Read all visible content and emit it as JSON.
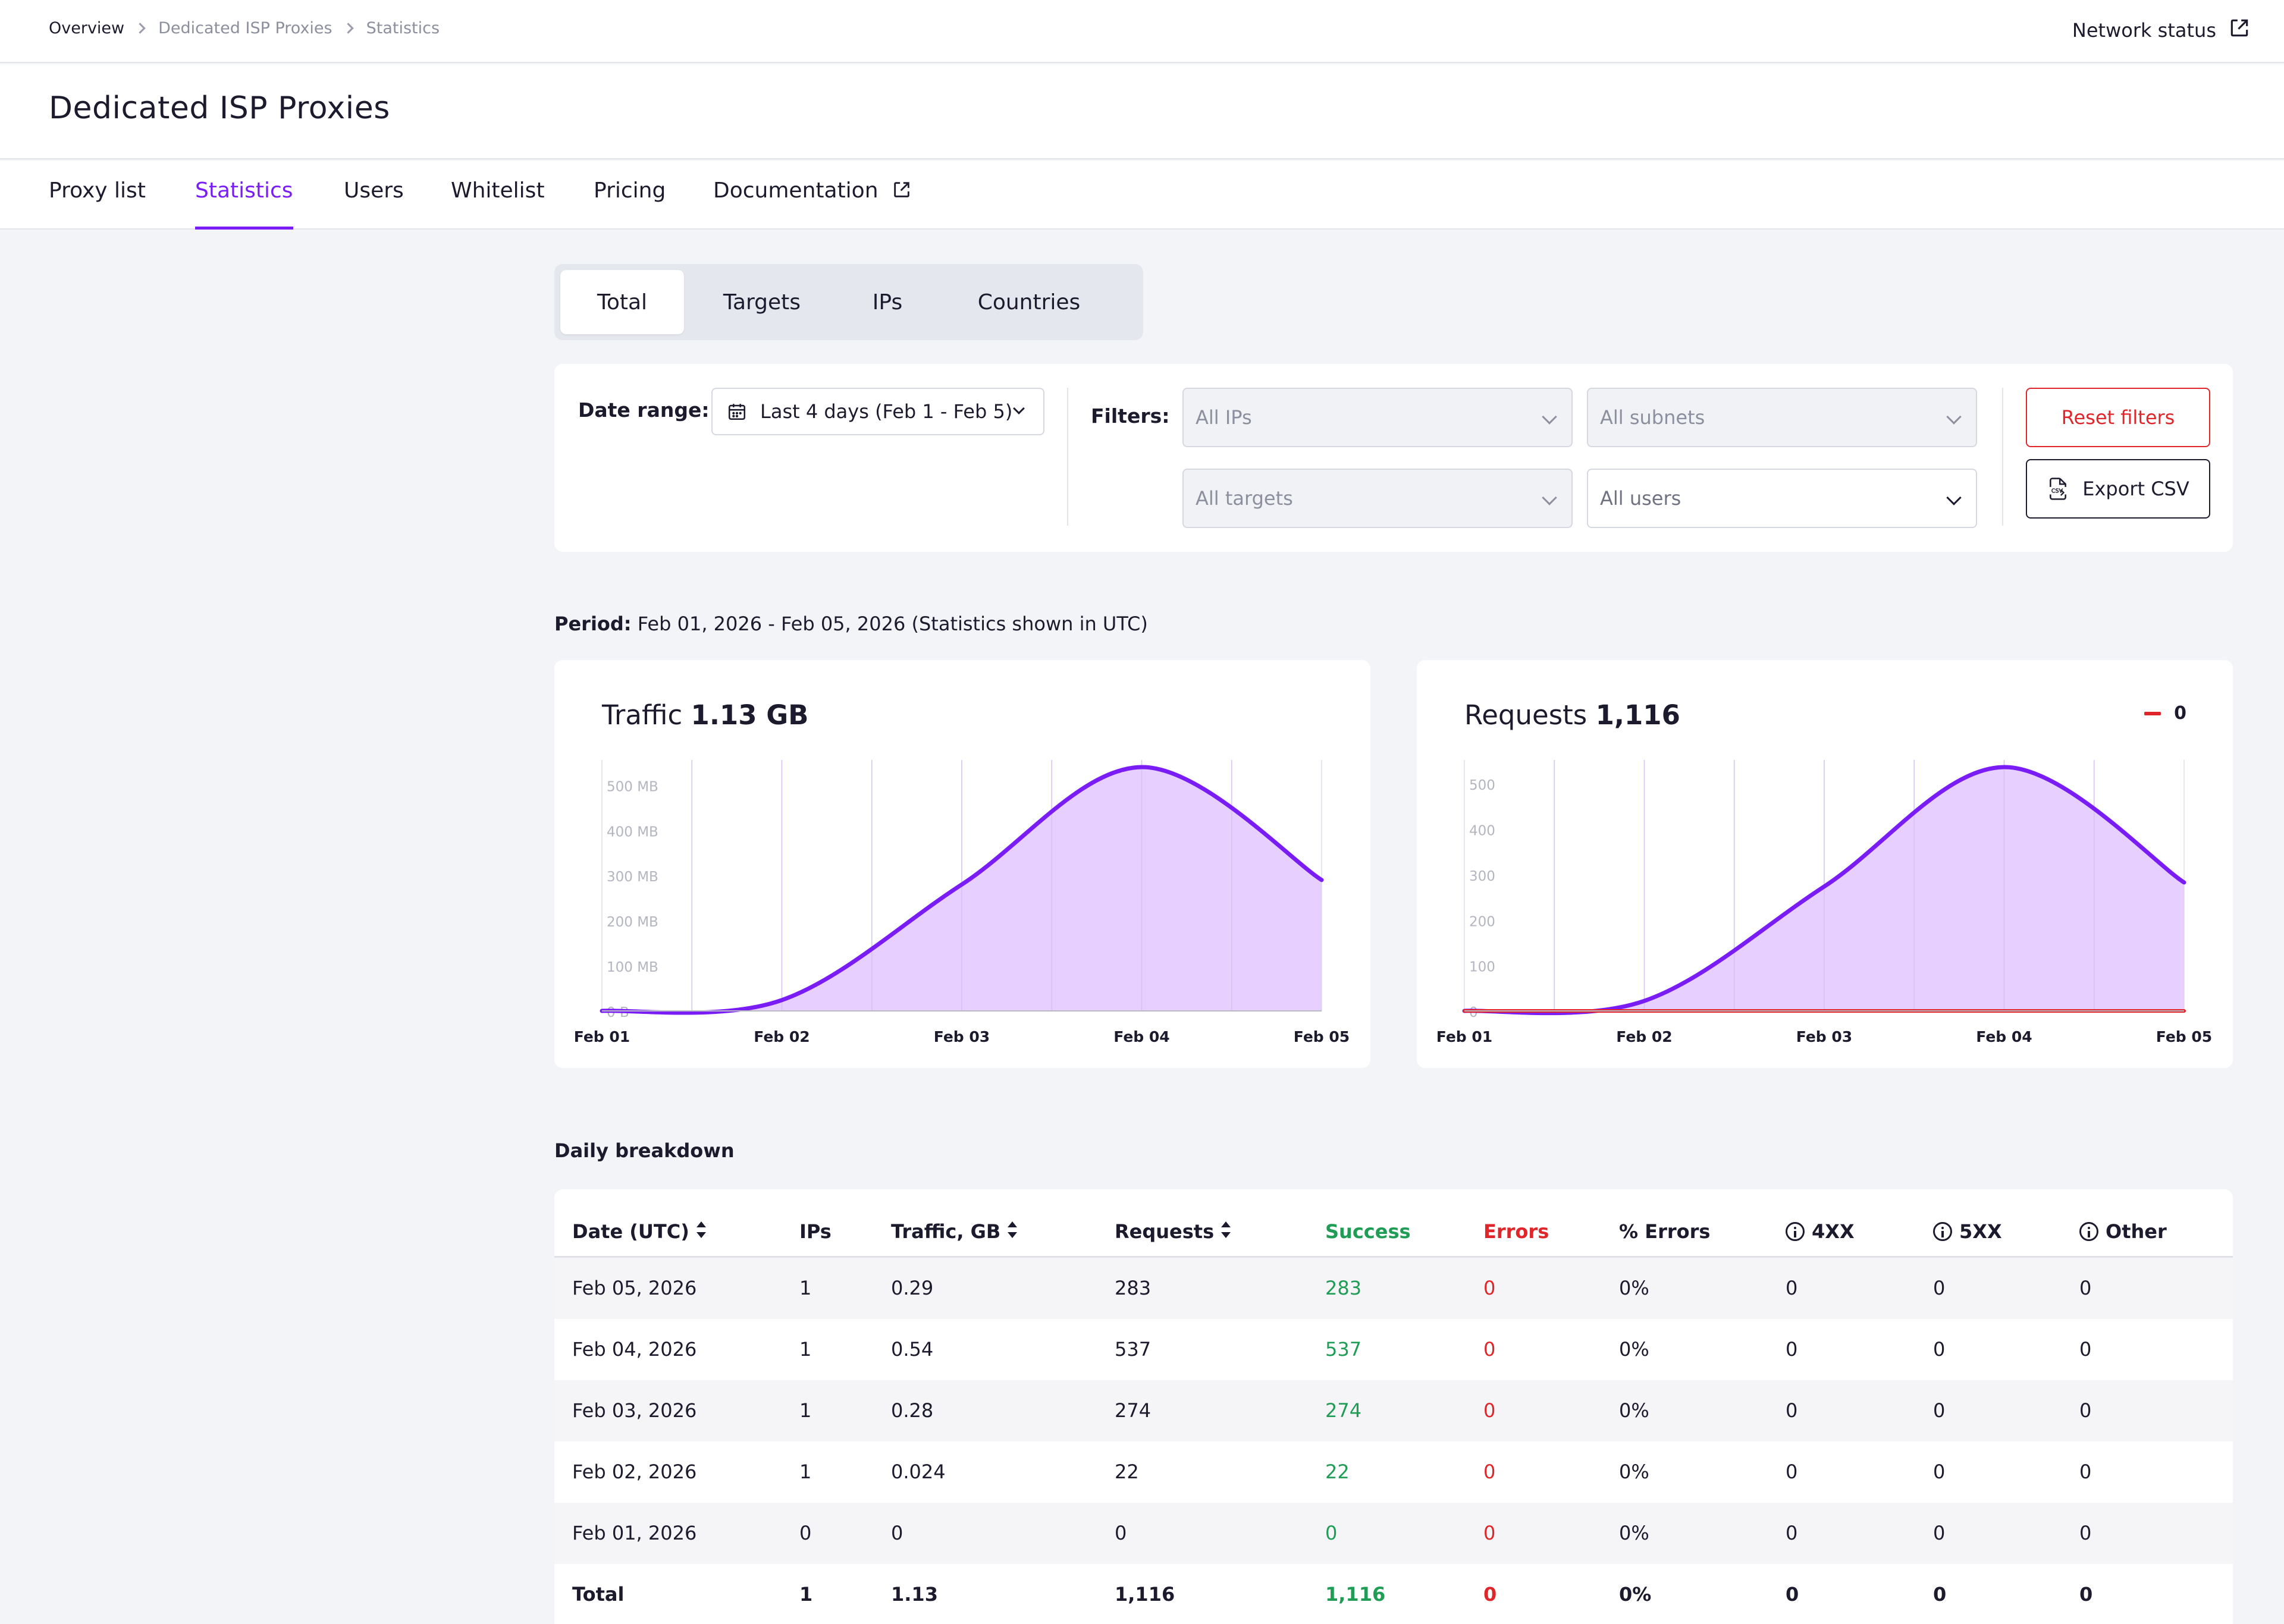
{
  "breadcrumb": [
    "Overview",
    "Dedicated ISP Proxies",
    "Statistics"
  ],
  "header": {
    "network_status": "Network status"
  },
  "page_title": "Dedicated ISP Proxies",
  "nav_tabs": [
    {
      "label": "Proxy list",
      "active": false
    },
    {
      "label": "Statistics",
      "active": true
    },
    {
      "label": "Users",
      "active": false
    },
    {
      "label": "Whitelist",
      "active": false
    },
    {
      "label": "Pricing",
      "active": false
    },
    {
      "label": "Documentation",
      "active": false
    }
  ],
  "sub_tabs": [
    {
      "label": "Total",
      "active": true
    },
    {
      "label": "Targets",
      "active": false
    },
    {
      "label": "IPs",
      "active": false
    },
    {
      "label": "Countries",
      "active": false
    }
  ],
  "filters": {
    "date_range_label": "Date range:",
    "date_range_value": "Last 4 days (Feb 1 - Feb 5)",
    "filters_label": "Filters:",
    "ips": "All IPs",
    "subnets": "All subnets",
    "targets": "All targets",
    "users": "All users",
    "reset_label": "Reset filters",
    "export_label": "Export CSV"
  },
  "period": {
    "label": "Period:",
    "value": "Feb 01, 2026 - Feb 05, 2026 (Statistics shown in UTC)"
  },
  "chart_data": [
    {
      "type": "area",
      "title": "Traffic",
      "total": "1.13 GB",
      "x": [
        "Feb 01",
        "Feb 02",
        "Feb 03",
        "Feb 04",
        "Feb 05"
      ],
      "y_ticks": [
        "0 B",
        "100 MB",
        "200 MB",
        "300 MB",
        "400 MB",
        "500 MB"
      ],
      "ylim": [
        0,
        540
      ],
      "grid": true,
      "series": [
        {
          "values": [
            0,
            24,
            280,
            540,
            290
          ],
          "color": "#7a1cf6"
        }
      ]
    },
    {
      "type": "area",
      "title": "Requests",
      "total": "1,116",
      "x": [
        "Feb 01",
        "Feb 02",
        "Feb 03",
        "Feb 04",
        "Feb 05"
      ],
      "y_ticks": [
        "0",
        "100",
        "200",
        "300",
        "400",
        "500"
      ],
      "ylim": [
        0,
        537
      ],
      "grid": true,
      "legend": {
        "position": "top-right",
        "value": "0",
        "color": "#e0262a"
      },
      "series": [
        {
          "values": [
            0,
            22,
            274,
            537,
            283
          ],
          "color": "#7a1cf6"
        },
        {
          "values": [
            0,
            0,
            0,
            0,
            0
          ],
          "color": "#e0262a"
        }
      ]
    }
  ],
  "table": {
    "title": "Daily breakdown",
    "columns": [
      "Date (UTC)",
      "IPs",
      "Traffic, GB",
      "Requests",
      "Success",
      "Errors",
      "% Errors",
      "4XX",
      "5XX",
      "Other"
    ],
    "rows": [
      [
        "Feb 05, 2026",
        "1",
        "0.29",
        "283",
        "283",
        "0",
        "0%",
        "0",
        "0",
        "0"
      ],
      [
        "Feb 04, 2026",
        "1",
        "0.54",
        "537",
        "537",
        "0",
        "0%",
        "0",
        "0",
        "0"
      ],
      [
        "Feb 03, 2026",
        "1",
        "0.28",
        "274",
        "274",
        "0",
        "0%",
        "0",
        "0",
        "0"
      ],
      [
        "Feb 02, 2026",
        "1",
        "0.024",
        "22",
        "22",
        "0",
        "0%",
        "0",
        "0",
        "0"
      ],
      [
        "Feb 01, 2026",
        "0",
        "0",
        "0",
        "0",
        "0",
        "0%",
        "0",
        "0",
        "0"
      ]
    ],
    "total": [
      "Total",
      "1",
      "1.13",
      "1,116",
      "1,116",
      "0",
      "0%",
      "0",
      "0",
      "0"
    ]
  }
}
